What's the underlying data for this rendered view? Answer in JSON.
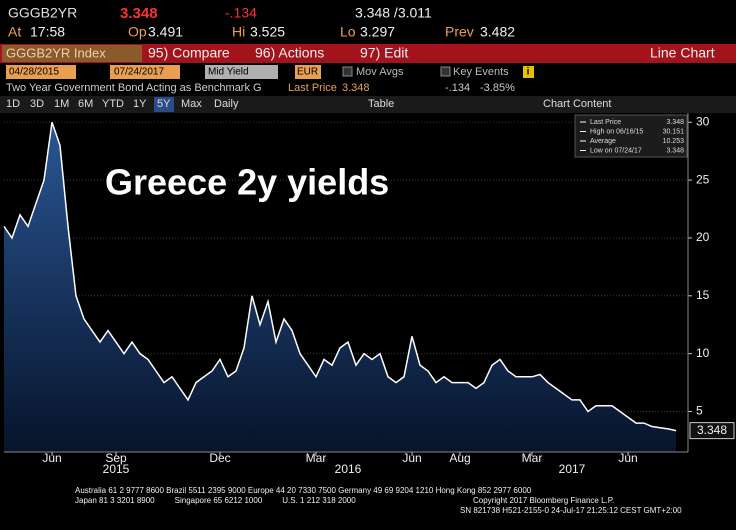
{
  "header": {
    "ticker": "GGGB2YR",
    "price": "3.348",
    "change": "-.134",
    "range": "3.348 /3.011"
  },
  "quote": [
    {
      "label": "At",
      "value": "17:58"
    },
    {
      "label": "Op",
      "value": "3.491"
    },
    {
      "label": "Hi",
      "value": "3.525"
    },
    {
      "label": "Lo",
      "value": "3.297"
    },
    {
      "label": "Prev",
      "value": "3.482"
    }
  ],
  "toolbar": {
    "security": "GGGB2YR Index",
    "compare": "95) Compare",
    "actions": "96) Actions",
    "edit": "97) Edit",
    "view": "Line Chart"
  },
  "controls": {
    "start": "04/28/2015",
    "end": "07/24/2017",
    "field": "Mid Yield",
    "currency": "EUR",
    "mov_avgs": "Mov Avgs",
    "key_events": "Key Events"
  },
  "info": {
    "description": "Two Year Government Bond Acting as Benchmark G",
    "last_price_label": "Last Price",
    "last_price": "3.348",
    "change": "-.134",
    "change_pct": "-3.85%"
  },
  "periods": [
    "1D",
    "3D",
    "1M",
    "6M",
    "YTD",
    "1Y",
    "5Y",
    "Max"
  ],
  "selected_period": "5Y",
  "frequency": "Daily",
  "table": "Table",
  "chart_content": "Chart Content",
  "chart_data": {
    "type": "area",
    "title": "Greece 2y yields",
    "color": "#ffffff",
    "categories": [
      null,
      null,
      null,
      null,
      null,
      null,
      "Jun",
      null,
      null,
      null,
      null,
      null,
      null,
      null,
      "Sep",
      null,
      null,
      null,
      null,
      null,
      null,
      null,
      null,
      null,
      null,
      null,
      null,
      "Dec",
      null,
      null,
      null,
      null,
      null,
      null,
      null,
      null,
      null,
      null,
      null,
      "Mar",
      null,
      null,
      null,
      null,
      null,
      null,
      null,
      null,
      null,
      null,
      null,
      "Jun",
      null,
      null,
      null,
      null,
      null,
      "Aug",
      null,
      null,
      null,
      null,
      null,
      null,
      null,
      null,
      "Mar",
      null,
      null,
      null,
      null,
      null,
      null,
      null,
      null,
      null,
      null,
      null,
      "Jun",
      null,
      null,
      null,
      null,
      null,
      null
    ],
    "years": [
      null,
      null,
      null,
      null,
      null,
      null,
      null,
      null,
      null,
      null,
      null,
      null,
      null,
      null,
      "2015",
      null,
      null,
      null,
      null,
      null,
      null,
      null,
      null,
      null,
      null,
      null,
      null,
      null,
      null,
      null,
      null,
      null,
      null,
      null,
      null,
      null,
      null,
      null,
      null,
      null,
      null,
      null,
      null,
      "2016",
      null,
      null,
      null,
      null,
      null,
      null,
      null,
      null,
      null,
      null,
      null,
      null,
      null,
      null,
      null,
      null,
      null,
      null,
      null,
      null,
      null,
      null,
      null,
      null,
      null,
      null,
      null,
      "2017",
      null,
      null,
      null,
      null,
      null,
      null,
      null,
      null,
      null,
      null,
      null,
      null
    ],
    "values": [
      21,
      20,
      22,
      21,
      23,
      25,
      30,
      28,
      21,
      15,
      13,
      12,
      11,
      12,
      11,
      10,
      11,
      10,
      9.5,
      8.5,
      7.5,
      8,
      7,
      6,
      7.5,
      8,
      8.5,
      9.5,
      8,
      8.5,
      10.5,
      15,
      12.5,
      14.5,
      11,
      13,
      12,
      10,
      9,
      8,
      9.5,
      9,
      10.5,
      11,
      9,
      10,
      9.5,
      10,
      8,
      7.5,
      8,
      11.5,
      9,
      8.5,
      7.5,
      8,
      7.5,
      7.5,
      7.5,
      7,
      7.5,
      9,
      9.5,
      8.5,
      8,
      8,
      8,
      8.2,
      7.5,
      7,
      6.5,
      6,
      6,
      5,
      5.5,
      5.5,
      5.5,
      5,
      4.5,
      4,
      4,
      3.7,
      3.6,
      3.5,
      3.348
    ],
    "ylim": [
      1.5,
      30.8
    ],
    "yticks": [
      5,
      10,
      15,
      20,
      25,
      30
    ],
    "grid": true,
    "stats": [
      {
        "name": "Last Price",
        "value": 3.348
      },
      {
        "name": "High on 06/16/15",
        "value": 30.151
      },
      {
        "name": "Average",
        "value": 10.253
      },
      {
        "name": "Low on 07/24/17",
        "value": 3.348
      }
    ]
  },
  "footer": {
    "line1": "Australia 61 2 9777 8600 Brazil 5511 2395 9000 Europe 44 20 7330 7500 Germany 49 69 9204 1210 Hong Kong 852 2977 6000",
    "line2": "Japan 81 3 3201 8900         Singapore 65 6212 1000         U.S. 1 212 318 2000",
    "copyright": "Copyright 2017 Bloomberg Finance L.P.",
    "line3": "SN 821738 H521-2155-0 24-Jul-17 21:25:12 CEST GMT+2:00"
  }
}
